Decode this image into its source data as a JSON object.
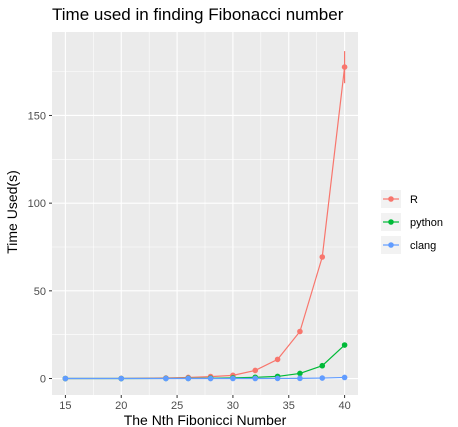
{
  "chart_data": {
    "type": "line",
    "title": "Time used in finding Fibonacci number",
    "xlabel": "The Nth Fibonicci Number",
    "ylabel": "Time Used(s)",
    "xlim": [
      13.8,
      41.2
    ],
    "ylim": [
      -9.4,
      197.6
    ],
    "x_ticks": [
      15,
      20,
      25,
      30,
      35,
      40
    ],
    "y_ticks": [
      0,
      50,
      100,
      150
    ],
    "grid": true,
    "legend_position": "right",
    "series": [
      {
        "name": "R",
        "color": "#F8766D",
        "x": [
          15,
          20,
          24,
          26,
          28,
          30,
          32,
          34,
          36,
          38,
          40
        ],
        "y": [
          0.01,
          0.05,
          0.3,
          0.6,
          1.1,
          1.8,
          4.6,
          10.9,
          26.8,
          69.3,
          177.6
        ],
        "error": [
          null,
          null,
          null,
          null,
          null,
          null,
          null,
          null,
          null,
          null,
          [
            168.4,
            186.7
          ]
        ]
      },
      {
        "name": "python",
        "color": "#00BA38",
        "x": [
          15,
          20,
          24,
          26,
          28,
          30,
          32,
          34,
          36,
          38,
          40
        ],
        "y": [
          0.0,
          0.0,
          0.05,
          0.1,
          0.2,
          0.35,
          0.7,
          1.2,
          2.9,
          7.3,
          19.1
        ]
      },
      {
        "name": "clang",
        "color": "#619CFF",
        "x": [
          15,
          20,
          24,
          26,
          28,
          30,
          32,
          34,
          36,
          38,
          40
        ],
        "y": [
          0.0,
          0.0,
          0.0,
          0.0,
          0.0,
          0.01,
          0.02,
          0.05,
          0.1,
          0.25,
          0.6
        ]
      }
    ]
  }
}
